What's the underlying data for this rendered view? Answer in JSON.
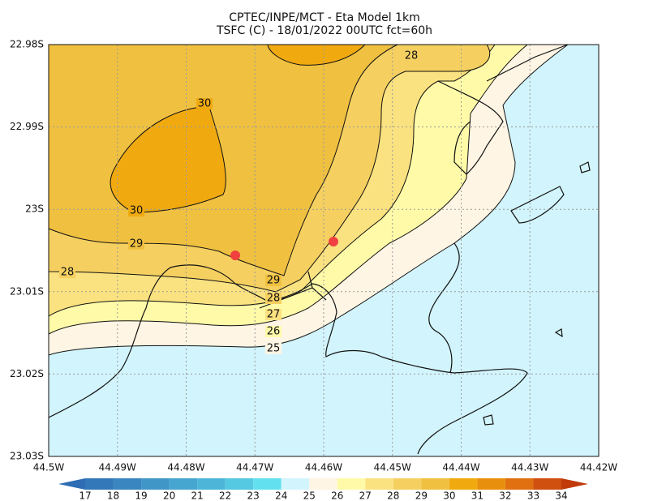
{
  "title": "CPTEC/INPE/MCT -  Eta Model 1km",
  "subtitle": "TSFC (C) - 18/01/2022 00UTC fct=60h",
  "x_axis": {
    "lim": [
      -44.5,
      -44.42
    ],
    "ticks": [
      {
        "value": -44.5,
        "label": "44.5W"
      },
      {
        "value": -44.49,
        "label": "44.49W"
      },
      {
        "value": -44.48,
        "label": "44.48W"
      },
      {
        "value": -44.47,
        "label": "44.47W"
      },
      {
        "value": -44.46,
        "label": "44.46W"
      },
      {
        "value": -44.45,
        "label": "44.45W"
      },
      {
        "value": -44.44,
        "label": "44.44W"
      },
      {
        "value": -44.43,
        "label": "44.43W"
      },
      {
        "value": -44.42,
        "label": "44.42W"
      }
    ]
  },
  "y_axis": {
    "lim": [
      -23.03,
      -22.98
    ],
    "ticks": [
      {
        "value": -22.98,
        "label": "22.98S"
      },
      {
        "value": -22.99,
        "label": "22.99S"
      },
      {
        "value": -23,
        "label": "23S"
      },
      {
        "value": -23.01,
        "label": "23.01S"
      },
      {
        "value": -23.02,
        "label": "23.02S"
      },
      {
        "value": -23.03,
        "label": "23.03S"
      }
    ]
  },
  "contour_labels": [
    30,
    30,
    29,
    28,
    29,
    28,
    27,
    26,
    25,
    28
  ],
  "colorbar": {
    "levels": [
      17,
      18,
      19,
      20,
      21,
      22,
      23,
      24,
      25,
      26,
      27,
      28,
      29,
      30,
      31,
      32,
      33,
      34
    ],
    "colors": [
      "#2e6db4",
      "#3378b8",
      "#3a86c0",
      "#4196c8",
      "#47a6d0",
      "#4db6d8",
      "#55c8e2",
      "#62e0f0",
      "#d2f4fc",
      "#fff5e4",
      "#fffaa8",
      "#fbe280",
      "#f5d060",
      "#f0c040",
      "#f0aa10",
      "#e8900e",
      "#e07010",
      "#d05010",
      "#c03a0a"
    ]
  }
}
